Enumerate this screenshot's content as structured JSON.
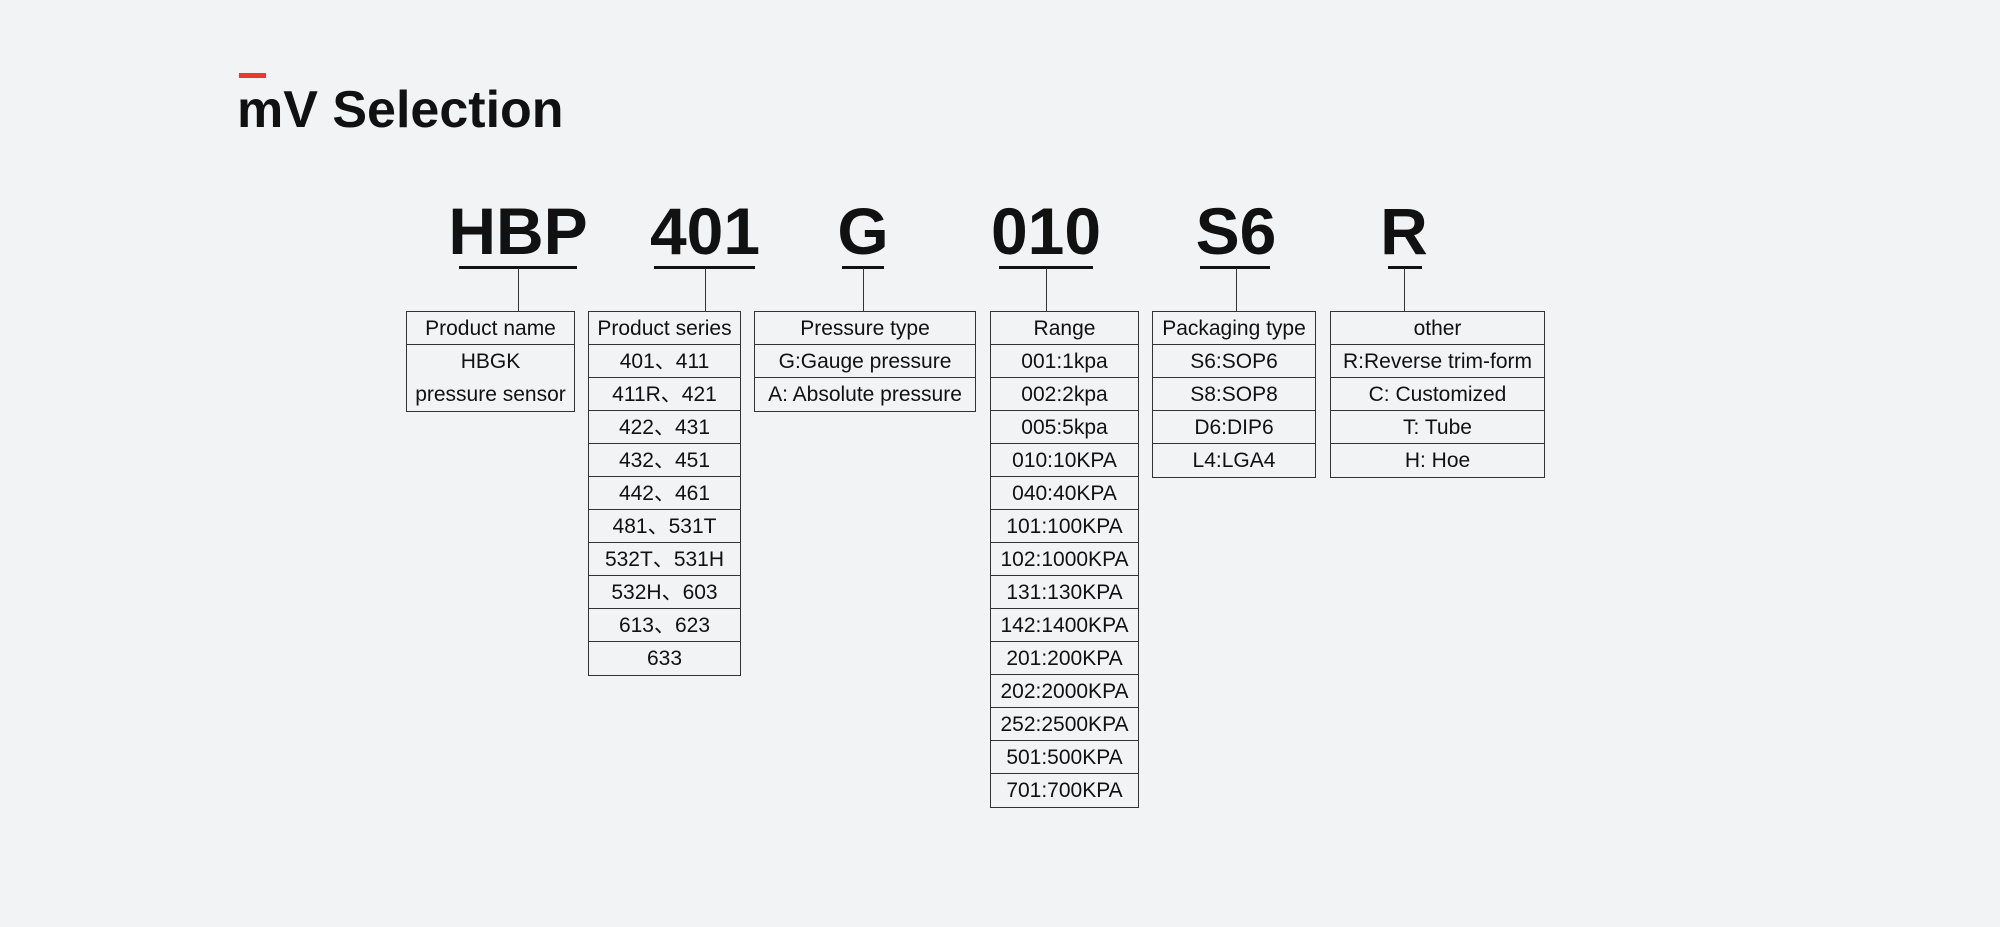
{
  "header": {
    "title": "mV Selection"
  },
  "columns": [
    {
      "code": "HBP",
      "label": "Product name",
      "items": [
        "HBGK",
        "pressure sensor"
      ]
    },
    {
      "code": "401",
      "label": "Product series",
      "items": [
        "401、411",
        "411R、421",
        "422、431",
        "432、451",
        "442、461",
        "481、531T",
        "532T、531H",
        "532H、603",
        "613、623",
        "633"
      ]
    },
    {
      "code": "G",
      "label": "Pressure type",
      "items": [
        "G:Gauge pressure",
        "A: Absolute pressure"
      ]
    },
    {
      "code": "010",
      "label": "Range",
      "items": [
        "001:1kpa",
        "002:2kpa",
        "005:5kpa",
        "010:10KPA",
        "040:40KPA",
        "101:100KPA",
        "102:1000KPA",
        "131:130KPA",
        "142:1400KPA",
        "201:200KPA",
        "202:2000KPA",
        "252:2500KPA",
        "501:500KPA",
        "701:700KPA"
      ]
    },
    {
      "code": "S6",
      "label": "Packaging type",
      "items": [
        "S6:SOP6",
        "S8:SOP8",
        "D6:DIP6",
        "L4:LGA4"
      ]
    },
    {
      "code": "R",
      "label": "other",
      "items": [
        "R:Reverse trim-form",
        "C: Customized",
        "T: Tube",
        "H: Hoe"
      ]
    }
  ]
}
